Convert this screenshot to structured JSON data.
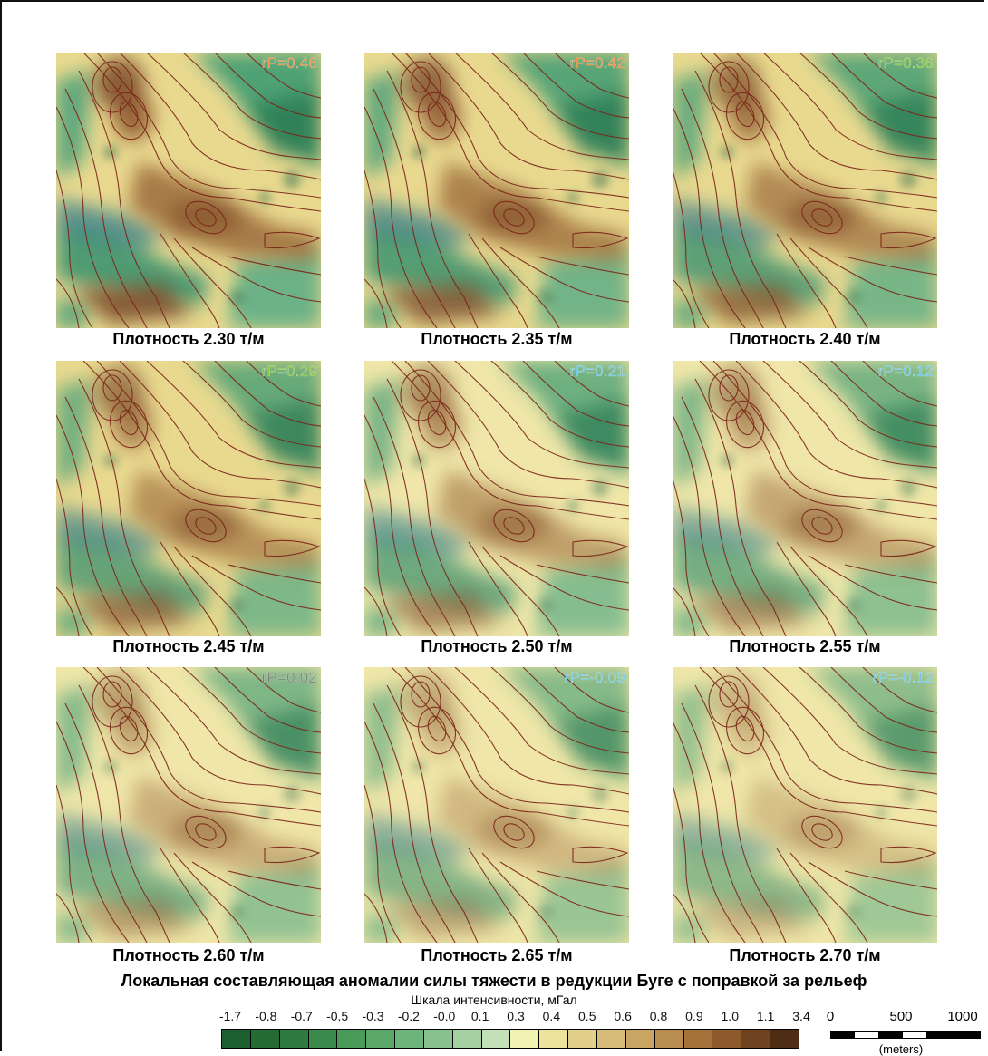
{
  "panels": [
    {
      "caption": "Плотность 2.30 т/м",
      "rp": "rP=0.46",
      "rp_color": "#f08a3c"
    },
    {
      "caption": "Плотность 2.35 т/м",
      "rp": "rP=0.42",
      "rp_color": "#f08a3c"
    },
    {
      "caption": "Плотность 2.40 т/м",
      "rp": "rP=0.36",
      "rp_color": "#8cc63f"
    },
    {
      "caption": "Плотность 2.45 т/м",
      "rp": "rP=0.29",
      "rp_color": "#8cc63f"
    },
    {
      "caption": "Плотность 2.50 т/м",
      "rp": "rP=0.21",
      "rp_color": "#6ec6e6"
    },
    {
      "caption": "Плотность 2.55 т/м",
      "rp": "rP=0.12",
      "rp_color": "#6ec6e6"
    },
    {
      "caption": "Плотность 2.60 т/м",
      "rp": "rP=0.02",
      "rp_color": "#7a7a7a"
    },
    {
      "caption": "Плотность 2.65 т/м",
      "rp": "rP=-0.09",
      "rp_color": "#6ec6e6"
    },
    {
      "caption": "Плотность 2.70 т/м",
      "rp": "rP=-0.12",
      "rp_color": "#6ec6e6"
    }
  ],
  "title": "Локальная составляющая аномалии силы тяжести в редукции Буге с поправкой за рельеф",
  "legend": {
    "title": "Шкала интенсивности, мГал",
    "ticks": [
      "-1.7",
      "-0.8",
      "-0.7",
      "-0.5",
      "-0.3",
      "-0.2",
      "-0.0",
      "0.1",
      "0.3",
      "0.4",
      "0.5",
      "0.6",
      "0.8",
      "0.9",
      "1.0",
      "1.1",
      "3.4"
    ],
    "colors": [
      "#1d5e2e",
      "#246b36",
      "#2e7a40",
      "#3a8a4c",
      "#4a9a5a",
      "#5aa868",
      "#6cb47a",
      "#88c28e",
      "#a4d0a2",
      "#c4e0b8",
      "#f2f2b2",
      "#ece39c",
      "#e2d08a",
      "#d6bc78",
      "#c9a564",
      "#b98c4f",
      "#a5723c",
      "#8c5a2b",
      "#6f4220",
      "#4f2c14"
    ]
  },
  "scale": {
    "labels": [
      "0",
      "500",
      "1000"
    ],
    "unit": "(meters)"
  }
}
